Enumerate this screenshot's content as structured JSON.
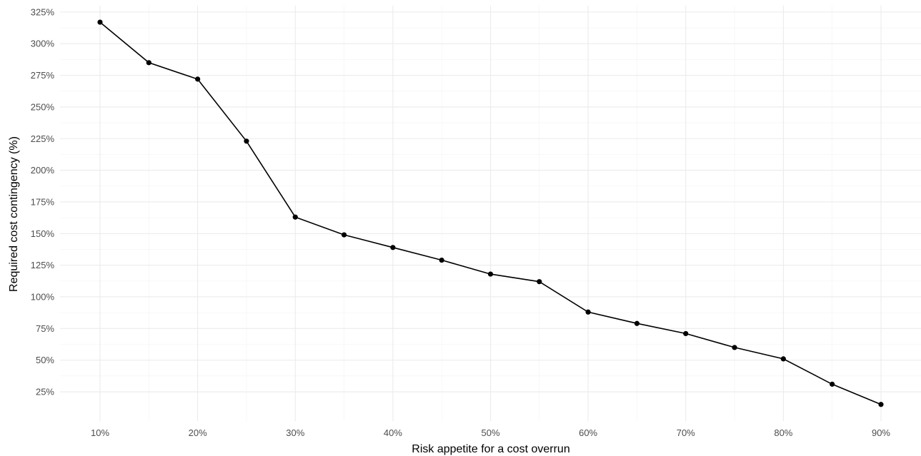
{
  "chart_data": {
    "type": "line",
    "title": "",
    "xlabel": "Risk appetite for a cost overrun",
    "ylabel": "Required cost contingency (%)",
    "x": [
      10,
      15,
      20,
      25,
      30,
      35,
      40,
      45,
      50,
      55,
      60,
      65,
      70,
      75,
      80,
      85,
      90
    ],
    "series": [
      {
        "values": [
          317,
          285,
          272,
          223,
          163,
          149,
          139,
          129,
          118,
          112,
          88,
          79,
          71,
          60,
          51,
          31,
          15
        ]
      }
    ],
    "x_ticks": [
      10,
      20,
      30,
      40,
      50,
      60,
      70,
      80,
      90
    ],
    "x_tick_labels": [
      "10%",
      "20%",
      "30%",
      "40%",
      "50%",
      "60%",
      "70%",
      "80%",
      "90%"
    ],
    "y_ticks": [
      25,
      50,
      75,
      100,
      125,
      150,
      175,
      200,
      225,
      250,
      275,
      300,
      325
    ],
    "y_tick_labels": [
      "25%",
      "50%",
      "75%",
      "100%",
      "125%",
      "150%",
      "175%",
      "200%",
      "225%",
      "250%",
      "275%",
      "300%",
      "325%"
    ],
    "xlim": [
      5.9,
      94.1
    ],
    "ylim": [
      1.9,
      330
    ],
    "grid": true,
    "colors": {
      "line": "#000000",
      "grid": "#ebebeb",
      "tick_text": "#4d4d4d"
    }
  }
}
